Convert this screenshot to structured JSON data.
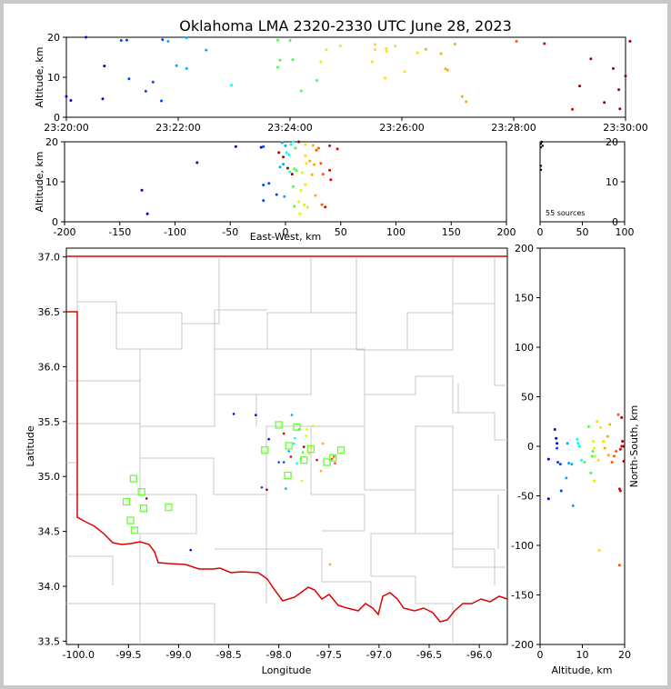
{
  "chart_data": [
    {
      "id": "time-height",
      "type": "scatter",
      "title": "Oklahoma LMA 2320-2330 UTC June 28, 2023",
      "xlabel": "",
      "ylabel": "Altitude, km",
      "x_ticks": [
        "23:20:00",
        "23:22:00",
        "23:24:00",
        "23:26:00",
        "23:28:00",
        "23:30:00"
      ],
      "xlim_minutes": [
        0,
        10
      ],
      "y_ticks": [
        "0",
        "10",
        "20"
      ],
      "ylim": [
        0,
        20
      ],
      "points_minutes_km": [
        [
          0.0,
          5.2
        ],
        [
          0.08,
          4.2
        ],
        [
          0.65,
          4.6
        ],
        [
          0.68,
          12.8
        ],
        [
          1.12,
          9.6
        ],
        [
          1.42,
          6.5
        ],
        [
          1.55,
          8.8
        ],
        [
          1.7,
          4.1
        ],
        [
          0.35,
          20.0
        ],
        [
          0.98,
          19.2
        ],
        [
          1.08,
          19.3
        ],
        [
          1.72,
          19.4
        ],
        [
          1.82,
          19.0
        ],
        [
          2.15,
          19.9
        ],
        [
          1.97,
          12.9
        ],
        [
          2.15,
          12.2
        ],
        [
          2.5,
          16.8
        ],
        [
          2.95,
          8.0
        ],
        [
          3.78,
          12.5
        ],
        [
          3.82,
          14.3
        ],
        [
          3.78,
          19.3
        ],
        [
          4.0,
          19.2
        ],
        [
          4.05,
          14.4
        ],
        [
          4.2,
          6.6
        ],
        [
          4.48,
          9.2
        ],
        [
          4.55,
          13.9
        ],
        [
          4.65,
          16.9
        ],
        [
          4.9,
          17.8
        ],
        [
          5.47,
          13.9
        ],
        [
          5.52,
          18.2
        ],
        [
          5.52,
          16.9
        ],
        [
          5.72,
          17.2
        ],
        [
          5.73,
          16.5
        ],
        [
          5.7,
          9.8
        ],
        [
          5.88,
          17.8
        ],
        [
          6.05,
          11.4
        ],
        [
          6.28,
          16.1
        ],
        [
          6.43,
          17.0
        ],
        [
          6.7,
          15.9
        ],
        [
          6.78,
          12.1
        ],
        [
          6.82,
          11.8
        ],
        [
          6.95,
          18.3
        ],
        [
          7.08,
          5.2
        ],
        [
          7.15,
          3.9
        ],
        [
          8.05,
          19.0
        ],
        [
          8.55,
          18.4
        ],
        [
          9.05,
          2.0
        ],
        [
          9.18,
          7.8
        ],
        [
          9.38,
          14.6
        ],
        [
          9.62,
          3.7
        ],
        [
          9.78,
          12.2
        ],
        [
          9.88,
          6.9
        ],
        [
          9.9,
          2.1
        ],
        [
          10.0,
          10.3
        ],
        [
          10.08,
          19.0
        ]
      ]
    },
    {
      "id": "ew-height",
      "type": "scatter",
      "xlabel": "East-West, km",
      "ylabel": "Altitude, km",
      "x_ticks": [
        "-200",
        "-150",
        "-100",
        "-50",
        "0",
        "50",
        "100",
        "150",
        "200"
      ],
      "xlim": [
        -200,
        200
      ],
      "y_ticks": [
        "0",
        "10",
        "20"
      ],
      "ylim": [
        0,
        20
      ],
      "points_km": [
        [
          -125,
          2.0
        ],
        [
          -130,
          7.9
        ],
        [
          -80,
          14.8
        ],
        [
          -45,
          18.8
        ],
        [
          -22,
          18.6
        ],
        [
          -20,
          18.8
        ],
        [
          -20,
          5.3
        ],
        [
          -20,
          9.2
        ],
        [
          -15,
          9.6
        ],
        [
          -8,
          6.8
        ],
        [
          -5,
          13.7
        ],
        [
          -3,
          19.8
        ],
        [
          -2,
          14.4
        ],
        [
          -1,
          6.3
        ],
        [
          0,
          19.0
        ],
        [
          1,
          17.3
        ],
        [
          3,
          16.8
        ],
        [
          4,
          12.5
        ],
        [
          5,
          19.3
        ],
        [
          7,
          20.0
        ],
        [
          7,
          8.8
        ],
        [
          8,
          3.9
        ],
        [
          8,
          13.2
        ],
        [
          9,
          18.4
        ],
        [
          10,
          12.8
        ],
        [
          12,
          5.0
        ],
        [
          13,
          2.0
        ],
        [
          14,
          7.8
        ],
        [
          15,
          12.3
        ],
        [
          17,
          4.2
        ],
        [
          18,
          9.3
        ],
        [
          18,
          19.3
        ],
        [
          18,
          16.5
        ],
        [
          19,
          14.6
        ],
        [
          20,
          3.6
        ],
        [
          22,
          15.2
        ],
        [
          24,
          11.8
        ],
        [
          25,
          19.1
        ],
        [
          26,
          14.3
        ],
        [
          27,
          6.6
        ],
        [
          28,
          17.9
        ],
        [
          30,
          18.4
        ],
        [
          32,
          14.6
        ],
        [
          33,
          4.3
        ],
        [
          34,
          11.9
        ],
        [
          36,
          3.7
        ],
        [
          40,
          19.0
        ],
        [
          40,
          12.9
        ],
        [
          41,
          10.5
        ],
        [
          47,
          18.2
        ],
        [
          -6,
          17.3
        ],
        [
          6,
          11.9
        ],
        [
          12,
          20.0
        ],
        [
          -2,
          16.2
        ],
        [
          2,
          13.4
        ]
      ]
    },
    {
      "id": "histogram",
      "type": "scatter",
      "annotation": "55 sources",
      "x_ticks": [
        "0",
        "50",
        "100"
      ],
      "xlim": [
        0,
        100
      ],
      "y_ticks": [
        "0",
        "10",
        "20"
      ],
      "ylim": [
        0,
        20
      ],
      "points": [
        [
          0,
          19.5
        ],
        [
          0,
          18.6
        ],
        [
          0,
          14.0
        ],
        [
          0,
          13.0
        ],
        [
          1,
          20.0
        ],
        [
          2,
          19.0
        ]
      ]
    },
    {
      "id": "plan-view",
      "type": "scatter",
      "xlabel": "Longitude",
      "ylabel": "Latitude",
      "x_ticks": [
        "-100.0",
        "-99.5",
        "-99.0",
        "-98.5",
        "-98.0",
        "-97.5",
        "-97.0",
        "-96.5",
        "-96.0"
      ],
      "xlim": [
        -100.12,
        -95.72
      ],
      "y_ticks": [
        "33.5",
        "34.0",
        "34.5",
        "35.0",
        "35.5",
        "36.0",
        "36.5",
        "37.0"
      ],
      "ylim": [
        33.47,
        37.08
      ],
      "stations": [
        [
          -99.45,
          34.98
        ],
        [
          -99.37,
          34.86
        ],
        [
          -99.52,
          34.77
        ],
        [
          -99.35,
          34.71
        ],
        [
          -99.1,
          34.72
        ],
        [
          -99.48,
          34.6
        ],
        [
          -99.44,
          34.51
        ],
        [
          -98.0,
          35.47
        ],
        [
          -97.82,
          35.45
        ],
        [
          -98.14,
          35.24
        ],
        [
          -97.9,
          35.28
        ],
        [
          -97.68,
          35.25
        ],
        [
          -97.75,
          35.15
        ],
        [
          -97.52,
          35.13
        ],
        [
          -97.46,
          35.17
        ],
        [
          -97.38,
          35.24
        ],
        [
          -97.91,
          35.01
        ]
      ],
      "points_lonlat": [
        [
          -98.88,
          34.33
        ],
        [
          -98.45,
          35.57
        ],
        [
          -98.23,
          35.56
        ],
        [
          -98.1,
          35.34
        ],
        [
          -98.17,
          34.9
        ],
        [
          -98.0,
          35.13
        ],
        [
          -97.95,
          35.13
        ],
        [
          -97.93,
          34.89
        ],
        [
          -97.9,
          35.23
        ],
        [
          -97.87,
          35.56
        ],
        [
          -97.85,
          35.3
        ],
        [
          -97.84,
          35.35
        ],
        [
          -97.82,
          35.12
        ],
        [
          -97.8,
          35.43
        ],
        [
          -97.78,
          35.16
        ],
        [
          -97.76,
          35.22
        ],
        [
          -97.77,
          34.96
        ],
        [
          -97.73,
          35.37
        ],
        [
          -97.72,
          35.43
        ],
        [
          -97.7,
          35.21
        ],
        [
          -97.68,
          35.26
        ],
        [
          -97.66,
          35.46
        ],
        [
          -97.58,
          35.05
        ],
        [
          -97.56,
          35.3
        ],
        [
          -97.49,
          34.2
        ],
        [
          -97.45,
          35.18
        ],
        [
          -97.44,
          35.12
        ],
        [
          -97.47,
          35.16
        ],
        [
          -97.88,
          35.18
        ],
        [
          -97.62,
          35.15
        ],
        [
          -97.95,
          35.39
        ],
        [
          -97.75,
          35.27
        ],
        [
          -99.32,
          34.8
        ],
        [
          -98.12,
          34.88
        ]
      ]
    },
    {
      "id": "ns-height",
      "type": "scatter",
      "xlabel": "Altitude, km",
      "ylabel": "North-South, km",
      "x_ticks": [
        "0",
        "10",
        "20"
      ],
      "xlim": [
        0,
        20
      ],
      "y_ticks": [
        "200",
        "150",
        "100",
        "50",
        "0",
        "-50",
        "-100",
        "-150",
        "-200"
      ],
      "ylim": [
        -200,
        200
      ],
      "points_km": [
        [
          2.0,
          -53
        ],
        [
          2.0,
          -13
        ],
        [
          3.5,
          17
        ],
        [
          3.8,
          8
        ],
        [
          4.0,
          3
        ],
        [
          4.0,
          -2
        ],
        [
          4.2,
          -16
        ],
        [
          4.8,
          -18
        ],
        [
          5.0,
          -45
        ],
        [
          6.2,
          -32
        ],
        [
          6.5,
          3
        ],
        [
          6.8,
          -17
        ],
        [
          7.5,
          -18
        ],
        [
          7.8,
          -60
        ],
        [
          8.8,
          7
        ],
        [
          9.0,
          3
        ],
        [
          9.3,
          0
        ],
        [
          9.8,
          -14
        ],
        [
          10.5,
          -16
        ],
        [
          11.5,
          20
        ],
        [
          12.0,
          -27
        ],
        [
          12.3,
          -10
        ],
        [
          12.5,
          -5
        ],
        [
          12.6,
          5
        ],
        [
          12.8,
          -2
        ],
        [
          12.8,
          -35
        ],
        [
          13.0,
          -10
        ],
        [
          13.5,
          25
        ],
        [
          13.8,
          -14
        ],
        [
          14.0,
          -105
        ],
        [
          14.3,
          19
        ],
        [
          15.0,
          5
        ],
        [
          15.3,
          -2
        ],
        [
          16.0,
          10
        ],
        [
          16.2,
          -9
        ],
        [
          16.5,
          22
        ],
        [
          17.0,
          -16
        ],
        [
          17.5,
          -10
        ],
        [
          18.0,
          -5
        ],
        [
          18.5,
          32
        ],
        [
          18.8,
          -120
        ],
        [
          18.8,
          -43
        ],
        [
          19.0,
          -45
        ],
        [
          19.0,
          -3
        ],
        [
          19.3,
          0
        ],
        [
          19.3,
          29
        ],
        [
          19.5,
          5
        ],
        [
          19.8,
          -15
        ],
        [
          19.8,
          0
        ]
      ]
    }
  ]
}
